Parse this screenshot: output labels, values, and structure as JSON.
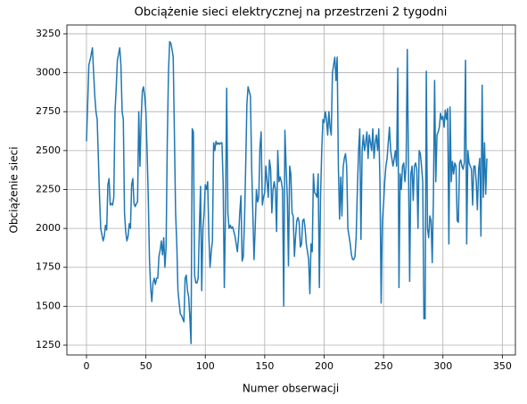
{
  "chart_data": {
    "type": "line",
    "title": "Obciążenie sieci elektrycznej na przestrzeni 2 tygodni",
    "xlabel": "Numer obserwacji",
    "ylabel": "Obciążenie sieci",
    "grid": true,
    "xlim": [
      -16.5,
      361
    ],
    "ylim": [
      1187,
      3307
    ],
    "xticks": [
      0,
      50,
      100,
      150,
      200,
      250,
      300,
      350
    ],
    "yticks": [
      1250,
      1500,
      1750,
      2000,
      2250,
      2500,
      2750,
      3000,
      3250
    ],
    "x": [
      0,
      1,
      2,
      3,
      4,
      5,
      6,
      7,
      8,
      9,
      10,
      11,
      12,
      13,
      14,
      15,
      16,
      17,
      18,
      19,
      20,
      21,
      22,
      23,
      24,
      25,
      26,
      27,
      28,
      29,
      30,
      31,
      32,
      33,
      34,
      35,
      36,
      37,
      38,
      39,
      40,
      41,
      42,
      43,
      44,
      45,
      46,
      47,
      48,
      49,
      50,
      51,
      52,
      53,
      54,
      55,
      56,
      57,
      58,
      59,
      60,
      61,
      62,
      63,
      64,
      65,
      66,
      67,
      68,
      69,
      70,
      71,
      72,
      73,
      74,
      75,
      76,
      77,
      78,
      79,
      80,
      81,
      82,
      83,
      84,
      85,
      86,
      87,
      88,
      89,
      90,
      91,
      92,
      93,
      94,
      95,
      96,
      97,
      98,
      99,
      100,
      101,
      102,
      103,
      104,
      105,
      106,
      107,
      108,
      109,
      110,
      111,
      112,
      113,
      114,
      115,
      116,
      117,
      118,
      119,
      120,
      121,
      122,
      123,
      124,
      125,
      126,
      127,
      128,
      129,
      130,
      131,
      132,
      133,
      134,
      135,
      136,
      137,
      138,
      139,
      140,
      141,
      142,
      143,
      144,
      145,
      146,
      147,
      148,
      149,
      150,
      151,
      152,
      153,
      154,
      155,
      156,
      157,
      158,
      159,
      160,
      161,
      162,
      163,
      164,
      165,
      166,
      167,
      168,
      169,
      170,
      171,
      172,
      173,
      174,
      175,
      176,
      177,
      178,
      179,
      180,
      181,
      182,
      183,
      184,
      185,
      186,
      187,
      188,
      189,
      190,
      191,
      192,
      193,
      194,
      195,
      196,
      197,
      198,
      199,
      200,
      201,
      202,
      203,
      204,
      205,
      206,
      207,
      208,
      209,
      210,
      211,
      212,
      213,
      214,
      215,
      216,
      217,
      218,
      219,
      220,
      221,
      222,
      223,
      224,
      225,
      226,
      227,
      228,
      229,
      230,
      231,
      232,
      233,
      234,
      235,
      236,
      237,
      238,
      239,
      240,
      241,
      242,
      243,
      244,
      245,
      246,
      247,
      248,
      249,
      250,
      251,
      252,
      253,
      254,
      255,
      256,
      257,
      258,
      259,
      260,
      261,
      262,
      263,
      264,
      265,
      266,
      267,
      268,
      269,
      270,
      271,
      272,
      273,
      274,
      275,
      276,
      277,
      278,
      279,
      280,
      281,
      282,
      283,
      284,
      285,
      286,
      287,
      288,
      289,
      290,
      291,
      292,
      293,
      294,
      295,
      296,
      297,
      298,
      299,
      300,
      301,
      302,
      303,
      304,
      305,
      306,
      307,
      308,
      309,
      310,
      311,
      312,
      313,
      314,
      315,
      316,
      317,
      318,
      319,
      320,
      321,
      322,
      323,
      324,
      325,
      326,
      327,
      328,
      329,
      330,
      331,
      332,
      333,
      334,
      335,
      336,
      337
    ],
    "series": [
      {
        "name": "Obciążenie",
        "color": "#1f77b4",
        "values": [
          2560,
          2800,
          3050,
          3080,
          3120,
          3160,
          3000,
          2850,
          2750,
          2700,
          2450,
          2200,
          2000,
          1960,
          1920,
          1950,
          2020,
          1990,
          2280,
          2320,
          2150,
          2160,
          2150,
          2200,
          2750,
          2900,
          3080,
          3120,
          3160,
          3050,
          2750,
          2700,
          2100,
          1980,
          1920,
          1950,
          2030,
          2000,
          2280,
          2320,
          2160,
          2140,
          2160,
          2170,
          2750,
          2400,
          2700,
          2880,
          2910,
          2850,
          2750,
          2500,
          2200,
          1800,
          1620,
          1530,
          1650,
          1680,
          1640,
          1680,
          1680,
          1820,
          1860,
          1920,
          1830,
          1940,
          1750,
          1880,
          2550,
          3000,
          3200,
          3190,
          3150,
          3100,
          2600,
          2100,
          1900,
          1600,
          1520,
          1450,
          1440,
          1420,
          1400,
          1680,
          1700,
          1600,
          1560,
          1430,
          1260,
          2640,
          2620,
          1700,
          1650,
          1650,
          1680,
          2000,
          2270,
          1600,
          2000,
          2100,
          2280,
          2250,
          2300,
          1950,
          1750,
          1850,
          1920,
          2550,
          2500,
          2560,
          2540,
          2550,
          2540,
          2550,
          2550,
          2300,
          1620,
          2100,
          2900,
          2100,
          2000,
          2020,
          2000,
          2010,
          1980,
          1950,
          1900,
          1850,
          1950,
          2100,
          2210,
          1790,
          1820,
          2050,
          2400,
          2800,
          2910,
          2880,
          2850,
          2400,
          2100,
          1800,
          2000,
          2250,
          2170,
          2200,
          2520,
          2620,
          2150,
          2200,
          2230,
          2400,
          2300,
          2200,
          2440,
          2380,
          2100,
          2250,
          2300,
          2250,
          1980,
          2500,
          2300,
          2330,
          2300,
          2250,
          1500,
          2630,
          2400,
          2200,
          1760,
          2400,
          2350,
          2100,
          2080,
          1820,
          1950,
          2050,
          2070,
          2040,
          1880,
          1900,
          2050,
          2060,
          2000,
          1900,
          1850,
          1800,
          1580,
          1900,
          1850,
          2350,
          2230,
          2220,
          2200,
          2350,
          1620,
          2200,
          2500,
          2700,
          2680,
          2750,
          2700,
          2600,
          2750,
          2650,
          2600,
          3000,
          3050,
          3100,
          2950,
          3100,
          2400,
          2060,
          2330,
          2080,
          2390,
          2450,
          2480,
          2400,
          2000,
          1950,
          1900,
          1830,
          1800,
          1800,
          1820,
          1950,
          2250,
          2500,
          2640,
          1930,
          2500,
          2600,
          2500,
          2550,
          2620,
          2450,
          2600,
          2550,
          2500,
          2640,
          2450,
          2550,
          2600,
          2500,
          2640,
          2300,
          1520,
          2050,
          2150,
          2300,
          2400,
          2450,
          2550,
          2650,
          2500,
          2450,
          2400,
          2450,
          2500,
          2400,
          3030,
          1620,
          2350,
          2250,
          2400,
          2420,
          2300,
          2400,
          3150,
          2400,
          1660,
          2350,
          2400,
          2180,
          2400,
          2420,
          2380,
          2000,
          2500,
          2480,
          2400,
          2300,
          1420,
          1420,
          3010,
          2000,
          1940,
          2080,
          2050,
          1780,
          2200,
          2950,
          2300,
          2600,
          2620,
          2650,
          2740,
          2700,
          2720,
          2650,
          2760,
          2700,
          2770,
          1900,
          2780,
          2300,
          2430,
          2350,
          2420,
          2400,
          2050,
          2040,
          2420,
          2440,
          2400,
          2380,
          2420,
          3080,
          1900,
          2500,
          2420,
          2400,
          2380,
          2150,
          2400,
          2400,
          2300,
          2120,
          2380,
          2450,
          1950,
          2920,
          2200,
          2550,
          2220,
          2450
        ]
      }
    ]
  }
}
